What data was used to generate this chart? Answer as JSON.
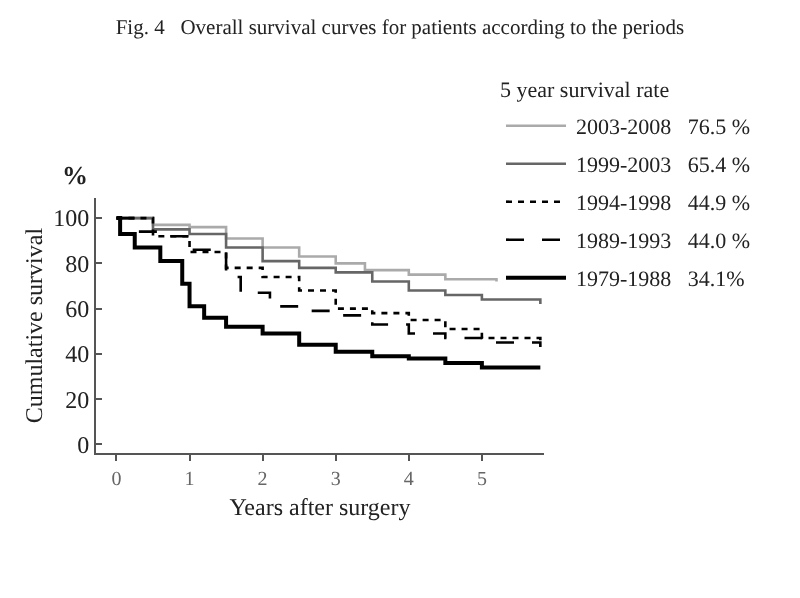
{
  "chart_data": {
    "type": "step",
    "title": "Fig. 4   Overall survival curves for patients according to the periods",
    "xlabel": "Years after surgery",
    "ylabel": "Cumulative survival",
    "legend_title": "5 year survival rate",
    "annotations": [
      "%"
    ],
    "xlim": [
      -0.28,
      5.85
    ],
    "xticks": [
      0,
      1,
      2,
      3,
      4,
      5
    ],
    "ylim": [
      -4,
      109
    ],
    "yticks": [
      0,
      20,
      40,
      60,
      80,
      100
    ],
    "legend": "top right",
    "marker": "none",
    "series": [
      {
        "name": "2003-2008   76.5 %",
        "color": "#aaaaaa",
        "line_style": "solid",
        "x": [
          0,
          0.5,
          1,
          1.5,
          2,
          2.5,
          3,
          3.4,
          4,
          4.5,
          5.2
        ],
        "values": [
          100,
          97,
          96,
          91,
          87,
          83,
          80,
          77,
          75,
          73,
          72
        ]
      },
      {
        "name": "1999-2003   65.4 %",
        "color": "#666666",
        "line_style": "solid",
        "x": [
          0,
          0.5,
          1,
          1.5,
          2,
          2.5,
          3,
          3.5,
          4,
          4.5,
          5,
          5.8
        ],
        "values": [
          100,
          95,
          93,
          87,
          81,
          78,
          76,
          72,
          68,
          66,
          64,
          62
        ]
      },
      {
        "name": "1994-1998   44.9 %",
        "color": "#000000",
        "line_style": "dotted",
        "x": [
          0,
          0.5,
          1,
          1.5,
          2,
          2.5,
          3,
          3.5,
          4,
          4.5,
          5,
          5.8
        ],
        "values": [
          100,
          92,
          85,
          78,
          74,
          68,
          60,
          58,
          55,
          51,
          47,
          45
        ]
      },
      {
        "name": "1989-1993   44.0 %",
        "color": "#000000",
        "line_style": "dashed",
        "x": [
          0,
          0.3,
          0.6,
          1.06,
          1.5,
          1.7,
          2.1,
          2.5,
          3,
          3.5,
          4,
          4.5,
          5,
          5.8
        ],
        "values": [
          100,
          94,
          92,
          86,
          74,
          67,
          61,
          59,
          57,
          53,
          49,
          47,
          45,
          43
        ]
      },
      {
        "name": "1979-1988   34.1%",
        "color": "#000000",
        "line_style": "solid",
        "x": [
          0,
          0.05,
          0.25,
          0.6,
          0.9,
          1.0,
          1.2,
          1.5,
          2,
          2.5,
          3,
          3.5,
          4,
          4.5,
          5,
          5.8
        ],
        "values": [
          100,
          93,
          87,
          81,
          71,
          61,
          56,
          52,
          49,
          44,
          41,
          39,
          38,
          36,
          34,
          34
        ]
      }
    ]
  }
}
